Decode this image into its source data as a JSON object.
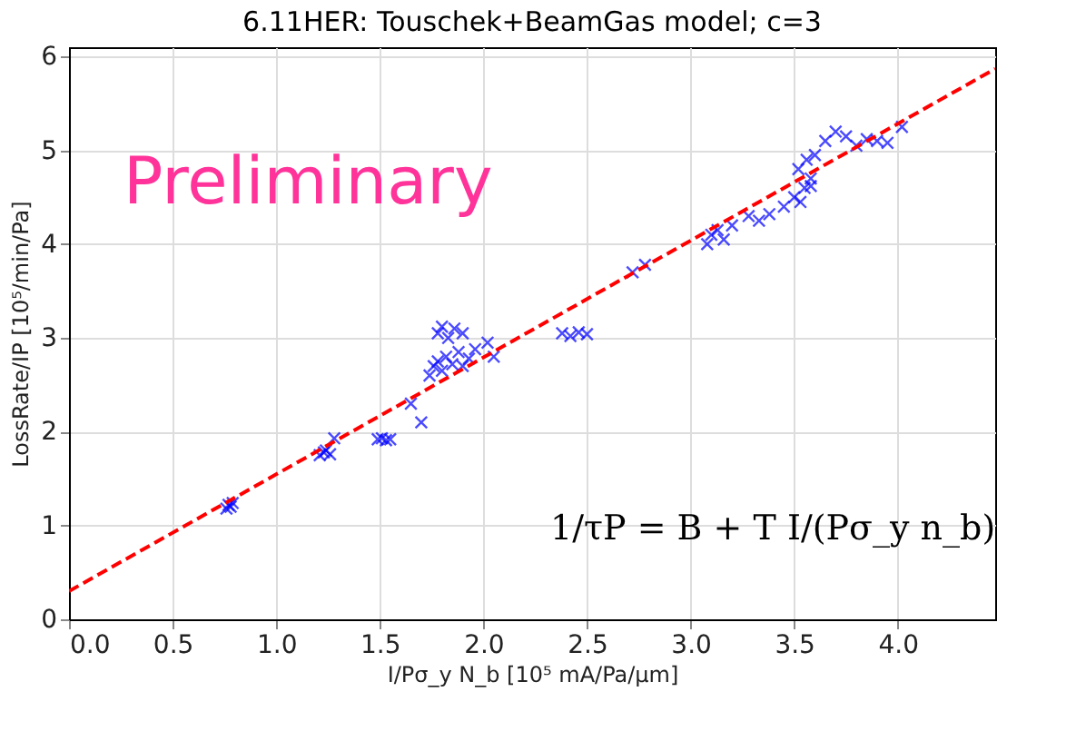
{
  "chart_data": {
    "type": "scatter",
    "title": "6.11HER: Touschek+BeamGas model; c=3",
    "xlabel": "I/Pσ_y N_b [10⁵ mA/Pa/μm]",
    "ylabel": "LossRate/IP [10⁵/min/Pa]",
    "x": [
      0.76,
      0.77,
      0.78,
      0.79,
      1.21,
      1.23,
      1.24,
      1.26,
      1.28,
      1.49,
      1.51,
      1.53,
      1.55,
      1.65,
      1.7,
      1.74,
      1.76,
      1.78,
      1.8,
      1.82,
      1.85,
      1.88,
      1.9,
      1.93,
      1.96,
      1.78,
      1.8,
      1.83,
      1.86,
      1.9,
      2.02,
      2.05,
      2.38,
      2.42,
      2.46,
      2.5,
      2.72,
      2.78,
      3.08,
      3.1,
      3.13,
      3.16,
      3.2,
      3.28,
      3.33,
      3.38,
      3.45,
      3.5,
      3.53,
      3.55,
      3.58,
      3.52,
      3.56,
      3.6,
      3.58,
      3.65,
      3.7,
      3.75,
      3.8,
      3.85,
      3.9,
      3.95,
      4.02
    ],
    "series": [
      {
        "color": "#0000ff",
        "marker": "cross",
        "values": [
          1.18,
          1.22,
          1.2,
          1.24,
          1.75,
          1.78,
          1.8,
          1.76,
          1.93,
          1.92,
          1.93,
          1.91,
          1.92,
          2.3,
          2.1,
          2.6,
          2.7,
          2.75,
          2.65,
          2.8,
          2.72,
          2.85,
          2.7,
          2.78,
          2.88,
          3.05,
          3.12,
          3.0,
          3.1,
          3.05,
          2.95,
          2.8,
          3.05,
          3.02,
          3.06,
          3.04,
          3.7,
          3.78,
          4.0,
          4.1,
          4.15,
          4.05,
          4.2,
          4.3,
          4.25,
          4.32,
          4.4,
          4.5,
          4.45,
          4.6,
          4.7,
          4.8,
          4.9,
          4.95,
          4.62,
          5.1,
          5.2,
          5.15,
          5.05,
          5.12,
          5.1,
          5.08,
          5.25
        ]
      },
      {
        "type": "line",
        "color": "#ff0000",
        "line_style": "dashed",
        "marker": "none",
        "x": [
          0,
          4.47
        ],
        "values": [
          0.3,
          5.87
        ]
      }
    ],
    "xlim": [
      0,
      4.47
    ],
    "ylim": [
      0,
      6.1
    ],
    "xticks": [
      {
        "value": 0,
        "label": "0.0"
      },
      {
        "value": 0.5,
        "label": "0.5"
      },
      {
        "value": 1,
        "label": "1.0"
      },
      {
        "value": 1.5,
        "label": "1.5"
      },
      {
        "value": 2,
        "label": "2.0"
      },
      {
        "value": 2.5,
        "label": "2.5"
      },
      {
        "value": 3,
        "label": "3.0"
      },
      {
        "value": 3.5,
        "label": "3.5"
      },
      {
        "value": 4,
        "label": "4.0"
      }
    ],
    "yticks": [
      0,
      1,
      2,
      3,
      4,
      5,
      6
    ],
    "grid": true,
    "annotations": [
      "Preliminary",
      "1/τP = B + T I/(Pσ_y n_b)"
    ]
  }
}
